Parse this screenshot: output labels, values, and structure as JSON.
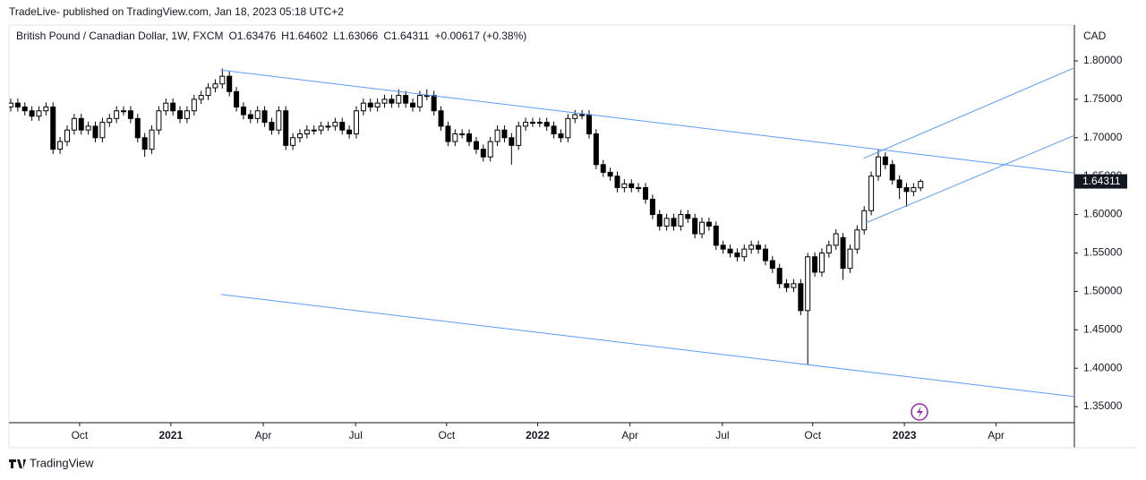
{
  "header": {
    "publisher": "TradeLive- published on TradingView.com, Jan 18, 2023 05:18 UTC+2"
  },
  "chart_data": {
    "type": "candlestick",
    "title": "British Pound / Canadian Dollar, 1W, FXCM",
    "ohlc_labels": [
      "O",
      "H",
      "L",
      "C"
    ],
    "change": "+0.00617 (+0.38%)",
    "currency": "CAD",
    "categories": [
      null,
      null,
      null,
      null,
      null,
      null,
      null,
      null,
      null,
      null,
      null,
      null,
      null,
      null,
      null,
      null,
      null,
      null,
      null,
      null,
      null,
      null,
      null,
      null,
      null,
      null,
      null,
      null,
      null,
      null,
      null,
      null,
      null,
      null,
      null,
      null,
      null,
      null,
      null,
      null,
      null,
      null,
      null,
      null,
      null,
      null,
      null,
      null,
      null,
      null,
      null,
      null,
      null,
      null,
      null,
      null,
      null,
      null,
      null,
      null,
      null,
      null,
      null,
      null,
      null,
      null,
      null,
      null,
      null,
      null,
      null,
      null,
      null,
      null,
      null,
      null,
      null,
      null,
      null,
      null,
      null,
      null,
      null,
      null,
      null,
      null,
      null,
      null,
      null,
      null,
      null,
      null,
      null,
      null,
      null,
      null,
      null,
      null,
      null,
      null,
      null,
      null,
      null,
      null,
      null,
      null,
      null,
      null,
      null,
      null,
      null,
      null,
      null,
      null,
      null,
      null,
      null,
      null,
      null,
      null,
      null,
      null,
      null,
      null,
      null,
      null,
      null,
      null,
      null,
      null
    ],
    "open": [
      1.74,
      1.745,
      1.74,
      1.735,
      1.728,
      1.735,
      1.74,
      1.685,
      1.695,
      1.71,
      1.725,
      1.71,
      1.715,
      1.7,
      1.72,
      1.725,
      1.735,
      1.735,
      1.725,
      1.7,
      1.685,
      1.71,
      1.735,
      1.745,
      1.735,
      1.725,
      1.735,
      1.75,
      1.755,
      1.765,
      1.77,
      1.78,
      1.76,
      1.74,
      1.73,
      1.725,
      1.735,
      1.72,
      1.71,
      1.735,
      1.69,
      1.7,
      1.705,
      1.71,
      1.71,
      1.715,
      1.715,
      1.72,
      1.71,
      1.705,
      1.735,
      1.745,
      1.74,
      1.745,
      1.75,
      1.745,
      1.755,
      1.745,
      1.74,
      1.755,
      1.755,
      1.735,
      1.715,
      1.695,
      1.705,
      1.705,
      1.695,
      1.685,
      1.675,
      1.695,
      1.71,
      1.7,
      1.69,
      1.715,
      1.72,
      1.72,
      1.72,
      1.715,
      1.705,
      1.7,
      1.725,
      1.73,
      1.73,
      1.705,
      1.665,
      1.655,
      1.65,
      1.635,
      1.64,
      1.635,
      1.635,
      1.62,
      1.6,
      1.585,
      1.595,
      1.585,
      1.6,
      1.595,
      1.575,
      1.59,
      1.585,
      1.56,
      1.555,
      1.55,
      1.545,
      1.555,
      1.56,
      1.555,
      1.54,
      1.53,
      1.51,
      1.505,
      1.51,
      1.475,
      1.545,
      1.525,
      1.55,
      1.56,
      1.57,
      1.53,
      1.555,
      1.58,
      1.605,
      1.65,
      1.675,
      1.665,
      1.645,
      1.635,
      1.63,
      1.63476
    ],
    "high": [
      1.751,
      1.751,
      1.746,
      1.741,
      1.741,
      1.746,
      1.746,
      1.701,
      1.716,
      1.731,
      1.731,
      1.721,
      1.721,
      1.726,
      1.731,
      1.741,
      1.741,
      1.741,
      1.731,
      1.706,
      1.716,
      1.741,
      1.751,
      1.751,
      1.741,
      1.741,
      1.756,
      1.761,
      1.771,
      1.776,
      1.79,
      1.786,
      1.766,
      1.746,
      1.736,
      1.741,
      1.741,
      1.726,
      1.741,
      1.741,
      1.706,
      1.711,
      1.716,
      1.716,
      1.721,
      1.721,
      1.726,
      1.726,
      1.716,
      1.741,
      1.751,
      1.751,
      1.751,
      1.756,
      1.756,
      1.763,
      1.761,
      1.751,
      1.761,
      1.763,
      1.761,
      1.741,
      1.721,
      1.711,
      1.711,
      1.711,
      1.701,
      1.691,
      1.701,
      1.716,
      1.716,
      1.706,
      1.721,
      1.726,
      1.726,
      1.726,
      1.726,
      1.721,
      1.711,
      1.731,
      1.736,
      1.736,
      1.736,
      1.711,
      1.671,
      1.661,
      1.656,
      1.646,
      1.646,
      1.641,
      1.641,
      1.626,
      1.606,
      1.601,
      1.601,
      1.606,
      1.606,
      1.601,
      1.596,
      1.596,
      1.591,
      1.566,
      1.561,
      1.556,
      1.561,
      1.566,
      1.566,
      1.561,
      1.546,
      1.536,
      1.516,
      1.516,
      1.516,
      1.55,
      1.551,
      1.556,
      1.566,
      1.581,
      1.576,
      1.561,
      1.586,
      1.611,
      1.656,
      1.685,
      1.681,
      1.671,
      1.651,
      1.641,
      1.641,
      1.64602
    ],
    "low": [
      1.734,
      1.734,
      1.729,
      1.722,
      1.722,
      1.729,
      1.679,
      1.679,
      1.689,
      1.704,
      1.704,
      1.704,
      1.694,
      1.694,
      1.714,
      1.719,
      1.729,
      1.719,
      1.694,
      1.675,
      1.679,
      1.704,
      1.729,
      1.729,
      1.719,
      1.719,
      1.729,
      1.744,
      1.749,
      1.759,
      1.764,
      1.754,
      1.734,
      1.724,
      1.719,
      1.719,
      1.714,
      1.704,
      1.704,
      1.684,
      1.684,
      1.694,
      1.699,
      1.704,
      1.704,
      1.709,
      1.709,
      1.704,
      1.699,
      1.699,
      1.729,
      1.734,
      1.734,
      1.739,
      1.739,
      1.739,
      1.739,
      1.734,
      1.734,
      1.749,
      1.729,
      1.709,
      1.689,
      1.689,
      1.699,
      1.689,
      1.679,
      1.669,
      1.669,
      1.689,
      1.694,
      1.665,
      1.684,
      1.709,
      1.714,
      1.714,
      1.709,
      1.699,
      1.694,
      1.694,
      1.719,
      1.724,
      1.699,
      1.659,
      1.649,
      1.644,
      1.629,
      1.629,
      1.629,
      1.629,
      1.614,
      1.594,
      1.579,
      1.579,
      1.579,
      1.579,
      1.589,
      1.569,
      1.569,
      1.579,
      1.554,
      1.549,
      1.544,
      1.539,
      1.539,
      1.549,
      1.549,
      1.534,
      1.524,
      1.504,
      1.499,
      1.499,
      1.469,
      1.404,
      1.519,
      1.519,
      1.544,
      1.554,
      1.515,
      1.524,
      1.549,
      1.574,
      1.599,
      1.644,
      1.659,
      1.639,
      1.62,
      1.61,
      1.624,
      1.63066
    ],
    "close": [
      1.745,
      1.74,
      1.735,
      1.728,
      1.735,
      1.74,
      1.685,
      1.695,
      1.71,
      1.725,
      1.71,
      1.715,
      1.7,
      1.72,
      1.725,
      1.735,
      1.735,
      1.725,
      1.7,
      1.685,
      1.71,
      1.735,
      1.745,
      1.735,
      1.725,
      1.735,
      1.75,
      1.755,
      1.765,
      1.77,
      1.78,
      1.76,
      1.74,
      1.73,
      1.725,
      1.735,
      1.72,
      1.71,
      1.735,
      1.69,
      1.7,
      1.705,
      1.71,
      1.71,
      1.715,
      1.715,
      1.72,
      1.71,
      1.705,
      1.735,
      1.745,
      1.74,
      1.745,
      1.75,
      1.745,
      1.755,
      1.745,
      1.74,
      1.755,
      1.755,
      1.735,
      1.715,
      1.695,
      1.705,
      1.705,
      1.695,
      1.685,
      1.675,
      1.695,
      1.71,
      1.7,
      1.69,
      1.715,
      1.72,
      1.72,
      1.72,
      1.715,
      1.705,
      1.7,
      1.725,
      1.73,
      1.73,
      1.705,
      1.665,
      1.655,
      1.65,
      1.635,
      1.64,
      1.635,
      1.635,
      1.62,
      1.6,
      1.585,
      1.595,
      1.585,
      1.6,
      1.595,
      1.575,
      1.59,
      1.585,
      1.56,
      1.555,
      1.55,
      1.545,
      1.555,
      1.56,
      1.555,
      1.54,
      1.53,
      1.51,
      1.505,
      1.51,
      1.475,
      1.545,
      1.525,
      1.55,
      1.56,
      1.575,
      1.53,
      1.555,
      1.58,
      1.605,
      1.65,
      1.675,
      1.665,
      1.645,
      1.635,
      1.63,
      1.635,
      1.64311
    ],
    "up_color": "#ffffff",
    "down_color": "#000000",
    "xlim": [
      -0.25,
      150.8
    ],
    "xticks": [
      {
        "value": 9.77,
        "label": "Oct"
      },
      {
        "value": 22.7,
        "label": "2021"
      },
      {
        "value": 35.8,
        "label": "Apr"
      },
      {
        "value": 48.9,
        "label": "Jul"
      },
      {
        "value": 61.8,
        "label": "Oct"
      },
      {
        "value": 74.7,
        "label": "2022"
      },
      {
        "value": 87.8,
        "label": "Apr"
      },
      {
        "value": 100.9,
        "label": "Jul"
      },
      {
        "value": 113.7,
        "label": "Oct"
      },
      {
        "value": 126.7,
        "label": "2023"
      },
      {
        "value": 139.7,
        "label": "Apr"
      }
    ],
    "ylim": [
      1.3291,
      1.8466
    ],
    "yticks": [
      {
        "value": 1.35,
        "label": "1.35000"
      },
      {
        "value": 1.4,
        "label": "1.40000"
      },
      {
        "value": 1.45,
        "label": "1.45000"
      },
      {
        "value": 1.5,
        "label": "1.50000"
      },
      {
        "value": 1.55,
        "label": "1.55000"
      },
      {
        "value": 1.6,
        "label": "1.60000"
      },
      {
        "value": 1.65,
        "label": "1.65000"
      },
      {
        "value": 1.7,
        "label": "1.70000"
      },
      {
        "value": 1.75,
        "label": "1.75000"
      },
      {
        "value": 1.8,
        "label": "1.80000"
      }
    ],
    "trend_lines": [
      {
        "x": [
          29.8,
          150.8
        ],
        "y": [
          1.788,
          1.654
        ],
        "color": "#5b9cf6"
      },
      {
        "x": [
          29.8,
          150.8
        ],
        "y": [
          1.496,
          1.363
        ],
        "color": "#5b9cf6"
      },
      {
        "x": [
          120.9,
          150.8
        ],
        "y": [
          1.673,
          1.791
        ],
        "color": "#5b9cf6"
      },
      {
        "x": [
          121.2,
          150.8
        ],
        "y": [
          1.589,
          1.703
        ],
        "color": "#5b9cf6"
      }
    ]
  },
  "footer": {
    "brand": "TradingView"
  }
}
